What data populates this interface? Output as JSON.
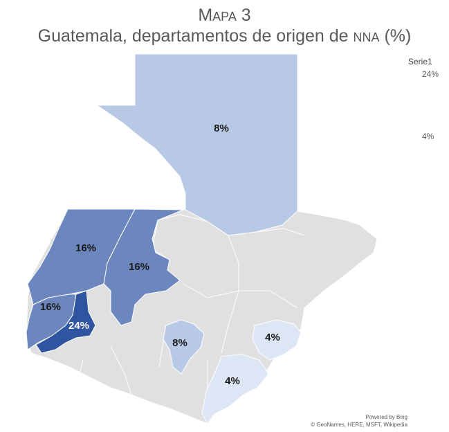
{
  "title": {
    "line1": "Mapa 3",
    "line2": "Guatemala, departamentos de origen de nna (%)"
  },
  "legend": {
    "series_name": "Serie1",
    "max_label": "24%",
    "min_label": "4%"
  },
  "attribution": {
    "powered_by": "Powered by Bing",
    "sources": "© GeoNames, HERE, MSFT, Wikipedia"
  },
  "chart_data": {
    "type": "map",
    "series": [
      {
        "name": "Serie1",
        "regions": [
          {
            "label": "8%",
            "value": 8
          },
          {
            "label": "16%",
            "value": 16
          },
          {
            "label": "16%",
            "value": 16
          },
          {
            "label": "16%",
            "value": 16
          },
          {
            "label": "24%",
            "value": 24
          },
          {
            "label": "8%",
            "value": 8
          },
          {
            "label": "4%",
            "value": 4
          },
          {
            "label": "4%",
            "value": 4
          }
        ]
      }
    ],
    "legend_range": [
      4,
      24
    ],
    "colors": {
      "scale_low": "#dde6f5",
      "scale_mid_low": "#b8c9e6",
      "scale_mid": "#6b87be",
      "scale_high": "#2f55a0",
      "no_data": "#e0e0e0"
    }
  }
}
